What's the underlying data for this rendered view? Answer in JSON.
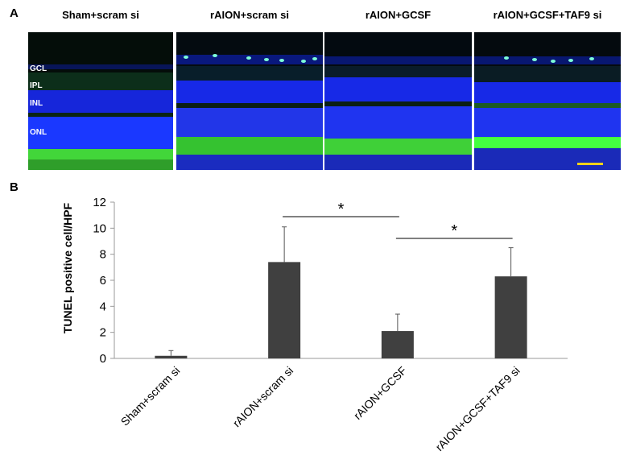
{
  "panels": {
    "a": "A",
    "b": "B"
  },
  "images": [
    {
      "title": "Sham+scram si"
    },
    {
      "title": "rAION+scram si"
    },
    {
      "title": "rAION+GCSF"
    },
    {
      "title": "rAION+GCSF+TAF9 si"
    }
  ],
  "layer_labels": {
    "gcl": "GCL",
    "ipl": "IPL",
    "inl": "INL",
    "onl": "ONL"
  },
  "colors": {
    "nuclei": "#1a2cff",
    "tunel": "#3dff4a",
    "bar": "#404040",
    "scale_bar": "#f2d21a"
  },
  "chart_data": {
    "type": "bar",
    "categories": [
      "Sham+scram si",
      "rAION+scram si",
      "rAION+GCSF",
      "rAION+GCSF+TAF9 si"
    ],
    "values": [
      0.2,
      7.4,
      2.1,
      6.3
    ],
    "error": [
      0.4,
      2.7,
      1.3,
      2.2
    ],
    "ylabel": "TUNEL positive cell/HPF",
    "xlabel": "",
    "title": "",
    "ylim": [
      0,
      12
    ],
    "yticks": [
      0,
      2,
      4,
      6,
      8,
      10,
      12
    ],
    "grid": false,
    "significance": [
      {
        "from": 1,
        "to": 2,
        "label": "*"
      },
      {
        "from": 2,
        "to": 3,
        "label": "*"
      }
    ]
  }
}
